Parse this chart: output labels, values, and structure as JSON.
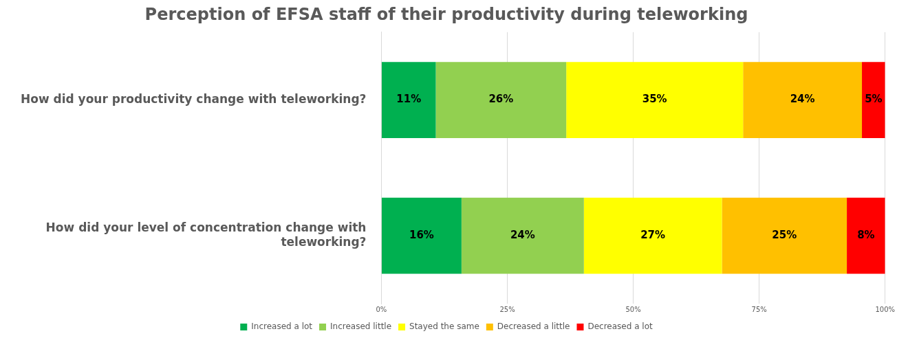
{
  "chart_data": {
    "type": "bar",
    "orientation": "horizontal",
    "stacked": true,
    "title": "Perception of EFSA staff of their productivity during teleworking",
    "categories": [
      "How did your productivity change with teleworking?",
      "How did your level of concentration change with teleworking?"
    ],
    "series": [
      {
        "name": "Increased a lot",
        "color": "#00b050",
        "values": [
          10.8,
          15.9
        ],
        "value_labels": [
          "11%",
          "16%"
        ]
      },
      {
        "name": "Increased little",
        "color": "#92d050",
        "values": [
          25.9,
          24.3
        ],
        "value_labels": [
          "26%",
          "24%"
        ]
      },
      {
        "name": "Stayed the same",
        "color": "#ffff00",
        "values": [
          35.1,
          27.4
        ],
        "value_labels": [
          "35%",
          "27%"
        ]
      },
      {
        "name": "Decreased a little",
        "color": "#ffc000",
        "values": [
          23.6,
          24.8
        ],
        "value_labels": [
          "24%",
          "25%"
        ]
      },
      {
        "name": "Decreased a lot",
        "color": "#ff0000",
        "values": [
          4.6,
          7.6
        ],
        "value_labels": [
          "5%",
          "8%"
        ]
      }
    ],
    "xlim": [
      0,
      100
    ],
    "xticks": [
      {
        "value": 0,
        "label": "0%"
      },
      {
        "value": 25,
        "label": "25%"
      },
      {
        "value": 50,
        "label": "50%"
      },
      {
        "value": 75,
        "label": "75%"
      },
      {
        "value": 100,
        "label": "100%"
      }
    ],
    "grid": "x",
    "legend": "bottom"
  }
}
